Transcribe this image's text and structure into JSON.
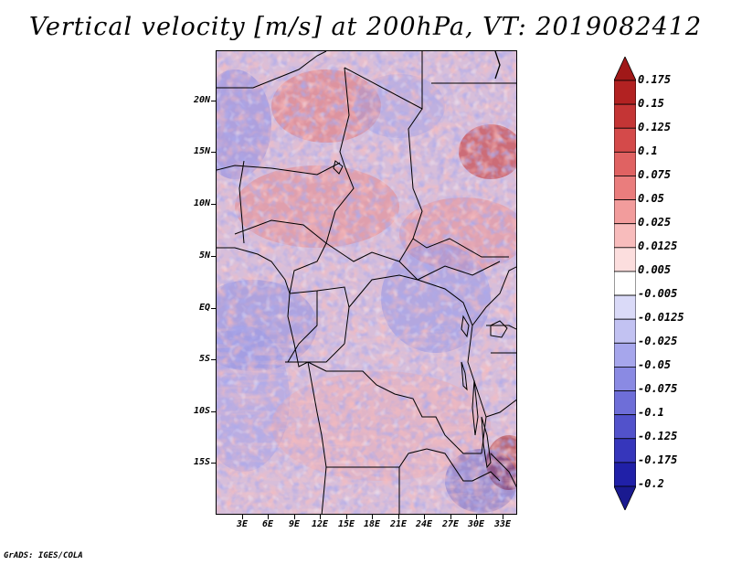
{
  "title": "Vertical velocity [m/s] at 200hPa, VT: 2019082412",
  "footer": "GrADS: IGES/COLA",
  "map": {
    "lat_labels": [
      "20N",
      "15N",
      "10N",
      "5N",
      "EQ",
      "5S",
      "10S",
      "15S"
    ],
    "lat_values": [
      20,
      15,
      10,
      5,
      0,
      -5,
      -10,
      -15
    ],
    "lon_labels": [
      "3E",
      "6E",
      "9E",
      "12E",
      "15E",
      "18E",
      "21E",
      "24E",
      "27E",
      "30E",
      "33E"
    ],
    "lon_values": [
      3,
      6,
      9,
      12,
      15,
      18,
      21,
      24,
      27,
      30,
      33
    ],
    "lat_range": [
      -19.2,
      25.5
    ],
    "lon_range": [
      0,
      34.5
    ]
  },
  "colorbar": {
    "levels": [
      "0.175",
      "0.15",
      "0.125",
      "0.1",
      "0.075",
      "0.05",
      "0.025",
      "0.0125",
      "0.005",
      "-0.005",
      "-0.0125",
      "-0.025",
      "-0.05",
      "-0.075",
      "-0.1",
      "-0.125",
      "-0.175",
      "-0.2"
    ],
    "colors": [
      "#a01818",
      "#b22222",
      "#c43535",
      "#d44a4a",
      "#e06262",
      "#ea7d7d",
      "#f29c9c",
      "#f8bcbc",
      "#fcdede",
      "#ffffff",
      "#dadaf8",
      "#c2c2f2",
      "#a6a6ec",
      "#8a8ae3",
      "#6e6ed8",
      "#5252cb",
      "#3636bb",
      "#2020a8",
      "#1a1a90"
    ]
  }
}
